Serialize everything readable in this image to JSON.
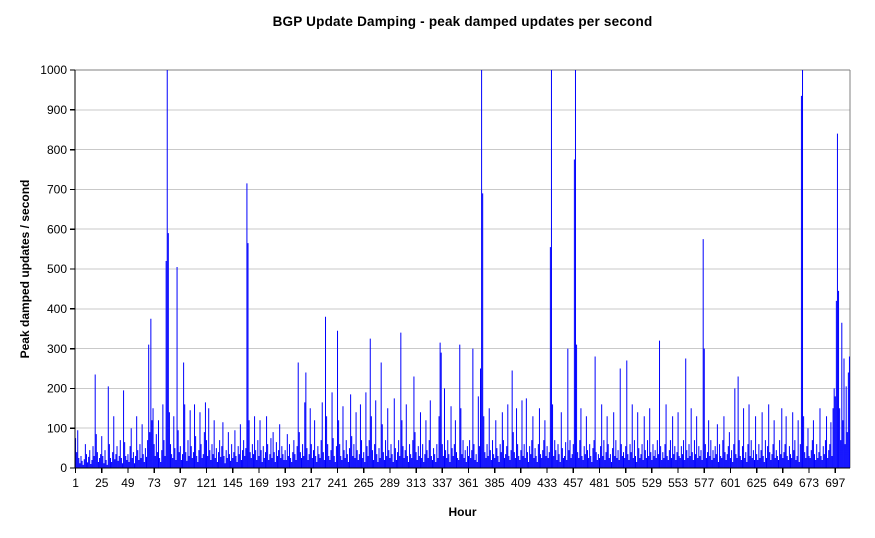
{
  "title": "BGP Update Damping - peak damped updates per second",
  "x_axis": {
    "label": "Hour",
    "ticks": [
      1,
      25,
      49,
      73,
      97,
      121,
      145,
      169,
      193,
      217,
      241,
      265,
      289,
      313,
      337,
      361,
      385,
      409,
      433,
      457,
      481,
      505,
      529,
      553,
      577,
      601,
      625,
      649,
      673,
      697
    ]
  },
  "y_axis": {
    "label": "Peak damped updates / second",
    "ticks": [
      0,
      100,
      200,
      300,
      400,
      500,
      600,
      700,
      800,
      900,
      1000
    ]
  },
  "colors": {
    "bar": "#0000fe",
    "gridline": "#c9c9c9",
    "frame": "#808080",
    "axis": "#000000",
    "background": "#ffffff"
  },
  "chart_data": {
    "type": "bar",
    "title": "BGP Update Damping - peak damped updates per second",
    "xlabel": "Hour",
    "ylabel": "Peak damped updates / second",
    "x_start": 1,
    "x_step": 1,
    "ylim": [
      0,
      1000
    ],
    "grid": true,
    "note_values_estimated": true,
    "values": [
      75,
      40,
      95,
      25,
      12,
      30,
      18,
      8,
      22,
      60,
      35,
      14,
      28,
      45,
      10,
      20,
      55,
      30,
      235,
      85,
      40,
      15,
      25,
      35,
      80,
      30,
      12,
      45,
      20,
      8,
      205,
      60,
      25,
      15,
      40,
      130,
      22,
      35,
      55,
      18,
      30,
      70,
      25,
      12,
      195,
      65,
      30,
      20,
      35,
      15,
      55,
      100,
      25,
      40,
      12,
      30,
      130,
      45,
      20,
      60,
      25,
      110,
      35,
      15,
      50,
      28,
      70,
      310,
      90,
      375,
      120,
      150,
      60,
      30,
      85,
      40,
      120,
      25,
      15,
      45,
      160,
      70,
      30,
      520,
      1000,
      590,
      140,
      60,
      35,
      25,
      130,
      50,
      20,
      505,
      95,
      40,
      55,
      20,
      35,
      265,
      160,
      40,
      18,
      70,
      30,
      145,
      55,
      25,
      40,
      160,
      80,
      30,
      15,
      45,
      140,
      60,
      25,
      35,
      90,
      165,
      70,
      30,
      150,
      45,
      20,
      60,
      35,
      120,
      25,
      50,
      15,
      40,
      70,
      28,
      55,
      115,
      30,
      12,
      45,
      25,
      90,
      35,
      18,
      60,
      25,
      40,
      95,
      30,
      15,
      55,
      35,
      110,
      20,
      45,
      70,
      30,
      50,
      715,
      565,
      120,
      40,
      25,
      60,
      35,
      130,
      45,
      20,
      70,
      30,
      120,
      45,
      15,
      55,
      25,
      40,
      130,
      60,
      20,
      35,
      75,
      25,
      90,
      40,
      15,
      65,
      30,
      45,
      110,
      25,
      55,
      35,
      20,
      45,
      20,
      85,
      30,
      60,
      25,
      15,
      40,
      70,
      35,
      20,
      55,
      265,
      90,
      40,
      25,
      60,
      30,
      165,
      240,
      50,
      20,
      35,
      150,
      60,
      25,
      45,
      120,
      30,
      15,
      55,
      35,
      25,
      70,
      165,
      40,
      20,
      380,
      130,
      60,
      30,
      20,
      45,
      190,
      75,
      30,
      15,
      55,
      345,
      120,
      60,
      30,
      20,
      155,
      45,
      25,
      70,
      35,
      15,
      50,
      185,
      80,
      30,
      60,
      25,
      140,
      45,
      20,
      35,
      160,
      70,
      25,
      40,
      15,
      190,
      55,
      30,
      70,
      325,
      130,
      45,
      20,
      60,
      170,
      35,
      15,
      50,
      25,
      265,
      110,
      40,
      20,
      70,
      30,
      150,
      45,
      25,
      60,
      35,
      15,
      175,
      50,
      20,
      40,
      70,
      30,
      340,
      120,
      55,
      25,
      45,
      160,
      30,
      15,
      60,
      35,
      25,
      70,
      230,
      90,
      40,
      20,
      55,
      30,
      140,
      25,
      60,
      15,
      35,
      120,
      45,
      25,
      70,
      170,
      30,
      20,
      50,
      35,
      15,
      60,
      25,
      130,
      315,
      290,
      60,
      30,
      200,
      45,
      25,
      70,
      35,
      15,
      155,
      50,
      30,
      60,
      120,
      40,
      25,
      20,
      310,
      150,
      35,
      70,
      25,
      45,
      15,
      55,
      30,
      70,
      25,
      45,
      300,
      60,
      20,
      35,
      15,
      180,
      55,
      250,
      1000,
      690,
      130,
      40,
      25,
      60,
      30,
      150,
      45,
      20,
      70,
      35,
      25,
      120,
      50,
      30,
      15,
      60,
      40,
      140,
      70,
      25,
      35,
      55,
      160,
      30,
      20,
      45,
      245,
      90,
      40,
      25,
      150,
      60,
      30,
      20,
      45,
      170,
      30,
      60,
      25,
      175,
      40,
      15,
      55,
      35,
      70,
      130,
      25,
      50,
      30,
      15,
      60,
      150,
      35,
      25,
      45,
      70,
      120,
      30,
      55,
      25,
      40,
      555,
      1000,
      160,
      30,
      70,
      45,
      20,
      60,
      35,
      15,
      140,
      50,
      25,
      30,
      65,
      20,
      300,
      45,
      70,
      25,
      35,
      60,
      775,
      1000,
      310,
      40,
      25,
      70,
      150,
      30,
      20,
      55,
      35,
      130,
      45,
      25,
      60,
      30,
      15,
      50,
      70,
      280,
      40,
      20,
      35,
      25,
      55,
      160,
      30,
      70,
      20,
      40,
      130,
      60,
      25,
      35,
      15,
      50,
      140,
      30,
      70,
      25,
      45,
      20,
      250,
      60,
      30,
      40,
      25,
      55,
      270,
      35,
      20,
      60,
      40,
      160,
      25,
      70,
      30,
      15,
      140,
      50,
      25,
      35,
      60,
      20,
      130,
      45,
      25,
      70,
      30,
      150,
      40,
      20,
      60,
      30,
      45,
      25,
      70,
      35,
      320,
      55,
      20,
      40,
      25,
      60,
      160,
      30,
      20,
      45,
      70,
      25,
      130,
      35,
      55,
      20,
      40,
      140,
      30,
      25,
      55,
      35,
      70,
      20,
      275,
      45,
      25,
      60,
      30,
      150,
      40,
      20,
      70,
      35,
      130,
      25,
      55,
      30,
      45,
      20,
      575,
      300,
      60,
      25,
      40,
      120,
      30,
      70,
      20,
      45,
      25,
      55,
      35,
      110,
      15,
      60,
      30,
      25,
      70,
      130,
      40,
      20,
      35,
      55,
      90,
      25,
      45,
      15,
      60,
      200,
      35,
      25,
      230,
      70,
      30,
      20,
      55,
      150,
      25,
      40,
      15,
      60,
      160,
      30,
      70,
      25,
      45,
      20,
      130,
      35,
      20,
      60,
      25,
      45,
      140,
      30,
      15,
      70,
      25,
      55,
      160,
      40,
      20,
      35,
      60,
      120,
      25,
      45,
      30,
      20,
      70,
      35,
      150,
      25,
      40,
      60,
      130,
      30,
      20,
      55,
      35,
      25,
      140,
      45,
      70,
      20,
      30,
      120,
      15,
      60,
      935,
      1000,
      130,
      40,
      25,
      55,
      100,
      30,
      25,
      45,
      70,
      120,
      35,
      20,
      60,
      25,
      40,
      150,
      30,
      20,
      55,
      35,
      70,
      130,
      25,
      45,
      60,
      115,
      30,
      150,
      200,
      180,
      420,
      840,
      445,
      150,
      70,
      365,
      120,
      275,
      60,
      205,
      90,
      240,
      280
    ]
  }
}
